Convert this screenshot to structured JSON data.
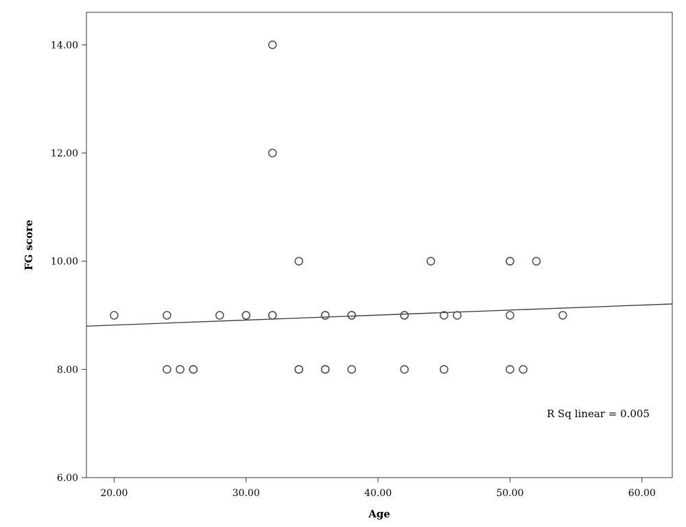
{
  "chart_data": {
    "type": "scatter",
    "title": "",
    "xlabel": "Age",
    "ylabel": "FG score",
    "xlim": [
      17.9,
      62.3
    ],
    "ylim": [
      6,
      14.6
    ],
    "x_ticks": [
      20,
      30,
      40,
      50,
      60
    ],
    "y_ticks": [
      6,
      8,
      10,
      12,
      14
    ],
    "x_tick_labels": [
      "20.00",
      "30.00",
      "40.00",
      "50.00",
      "60.00"
    ],
    "y_tick_labels": [
      "6.00",
      "8.00",
      "10.00",
      "12.00",
      "14.00"
    ],
    "grid": false,
    "marker": "open-circle",
    "points": [
      {
        "x": 20,
        "y": 9
      },
      {
        "x": 24,
        "y": 9
      },
      {
        "x": 24,
        "y": 8
      },
      {
        "x": 25,
        "y": 8
      },
      {
        "x": 26,
        "y": 8
      },
      {
        "x": 26,
        "y": 8
      },
      {
        "x": 28,
        "y": 9
      },
      {
        "x": 30,
        "y": 9
      },
      {
        "x": 30,
        "y": 9
      },
      {
        "x": 32,
        "y": 14
      },
      {
        "x": 32,
        "y": 12
      },
      {
        "x": 32,
        "y": 9
      },
      {
        "x": 32,
        "y": 9
      },
      {
        "x": 34,
        "y": 10
      },
      {
        "x": 34,
        "y": 8
      },
      {
        "x": 34,
        "y": 8
      },
      {
        "x": 36,
        "y": 9
      },
      {
        "x": 36,
        "y": 9
      },
      {
        "x": 36,
        "y": 8
      },
      {
        "x": 36,
        "y": 8
      },
      {
        "x": 38,
        "y": 9
      },
      {
        "x": 38,
        "y": 9
      },
      {
        "x": 38,
        "y": 8
      },
      {
        "x": 42,
        "y": 9
      },
      {
        "x": 42,
        "y": 9
      },
      {
        "x": 42,
        "y": 8
      },
      {
        "x": 44,
        "y": 10
      },
      {
        "x": 45,
        "y": 9
      },
      {
        "x": 45,
        "y": 8
      },
      {
        "x": 46,
        "y": 9
      },
      {
        "x": 50,
        "y": 10
      },
      {
        "x": 50,
        "y": 10
      },
      {
        "x": 50,
        "y": 9
      },
      {
        "x": 50,
        "y": 8
      },
      {
        "x": 51,
        "y": 8
      },
      {
        "x": 52,
        "y": 10
      },
      {
        "x": 54,
        "y": 9
      }
    ],
    "fit_line": {
      "type": "linear",
      "x": [
        17.9,
        62.3
      ],
      "y": [
        8.8,
        9.21
      ]
    },
    "annotation": "R Sq linear = 0.005",
    "colors": {
      "marker_stroke": "#555555",
      "line": "#333333",
      "axis": "#333333"
    }
  }
}
